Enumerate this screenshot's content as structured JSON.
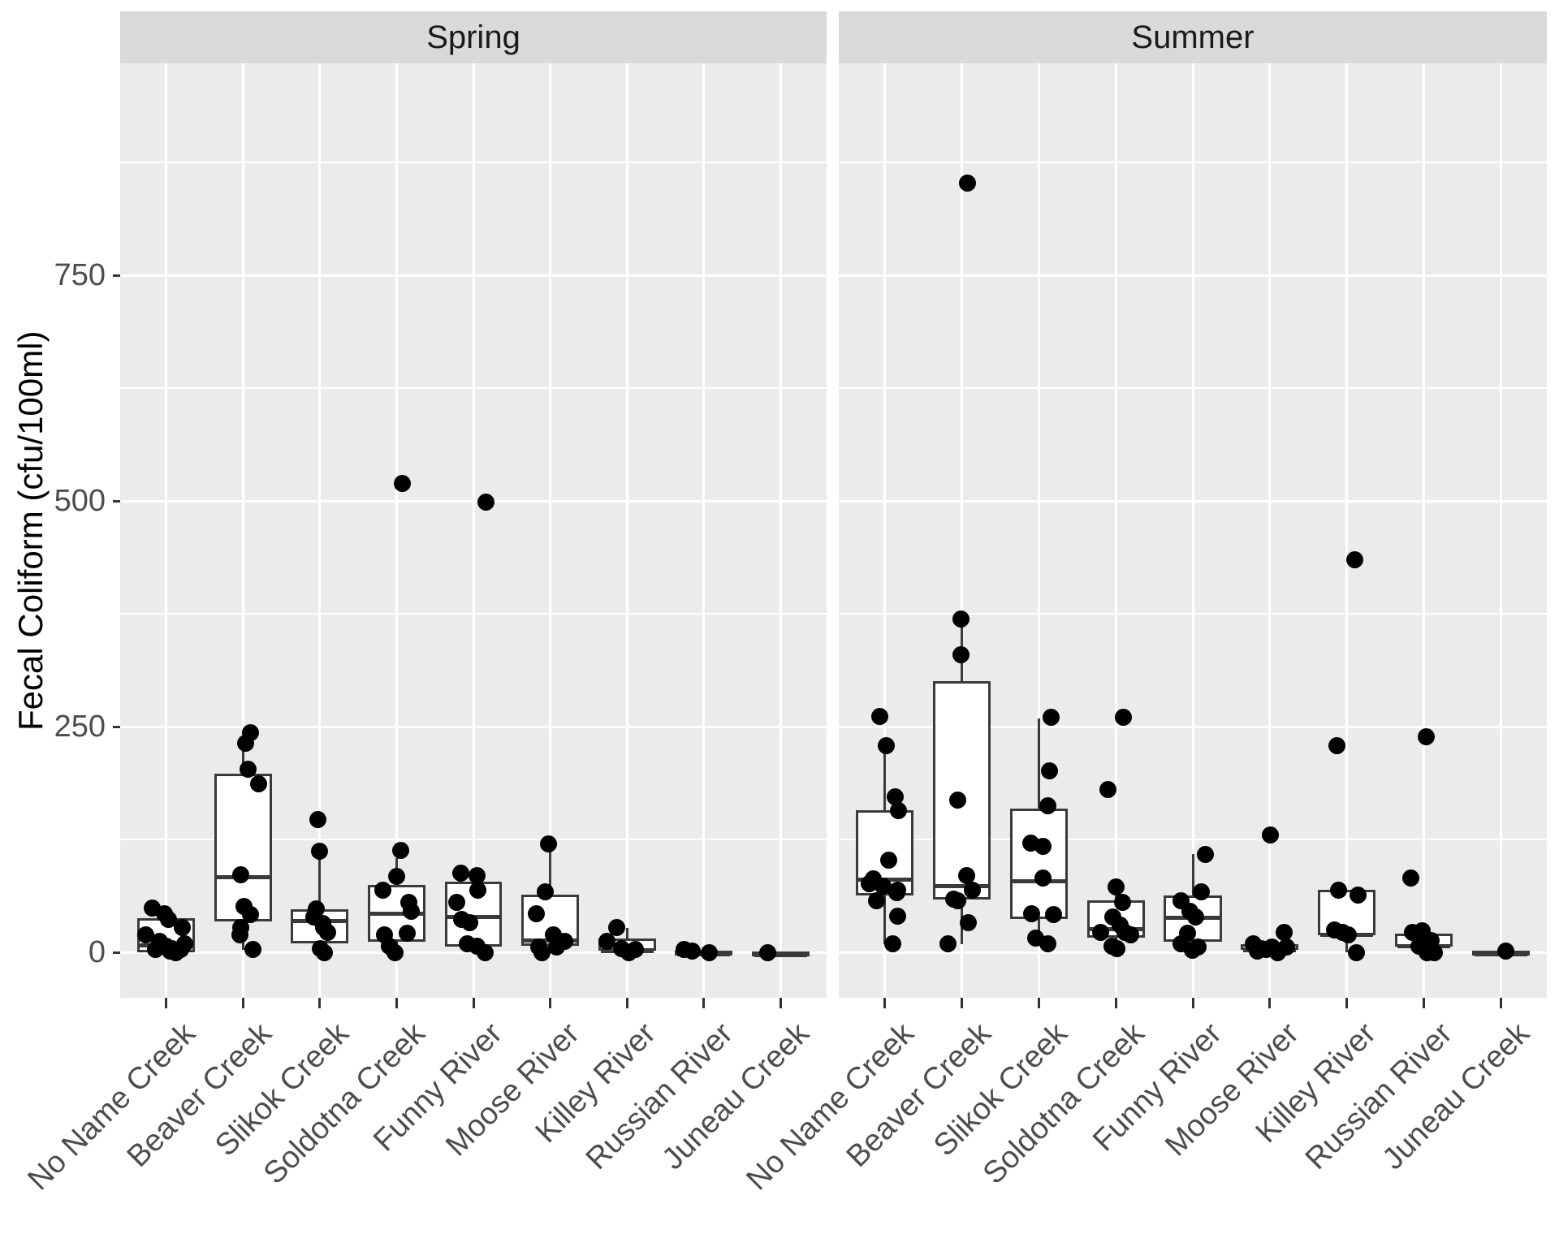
{
  "chart_data": {
    "type": "boxplot",
    "title": "",
    "legend": "none",
    "grid": true,
    "points_format": "[x_jitter_px, value_cfu_per_100ml]",
    "x_categories": [
      "No Name Creek",
      "Beaver Creek",
      "Slikok Creek",
      "Soldotna Creek",
      "Funny River",
      "Moose River",
      "Killey River",
      "Russian River",
      "Juneau Creek"
    ],
    "y_axis": {
      "label": "Fecal Coliform (cfu/100ml)",
      "major_ticks": [
        0,
        250,
        500,
        750
      ],
      "minor_ticks": [
        125,
        375,
        625,
        875
      ],
      "ylim": [
        -50,
        985
      ]
    },
    "colors": {
      "panel_bg": "#EBEBEB",
      "strip_bg": "#D9D9D9",
      "strip_text": "#1A1A1A",
      "gridline": "#FFFFFF",
      "box_fill": "#FFFFFF",
      "box_border": "#3A3A3A",
      "point": "#000000",
      "tick_text": "#4D4D4D",
      "tick_mark": "#333333",
      "axis_title": "#000000"
    },
    "facets": [
      {
        "label": "Spring",
        "groups": [
          {
            "name": "No Name Creek",
            "box": {
              "q1": 0,
              "median": 10,
              "q3": 38,
              "whisker_low": 0,
              "whisker_high": 49
            },
            "points": [
              [
                -25,
                19
              ],
              [
                -17,
                49
              ],
              [
                -2,
                43
              ],
              [
                3,
                36
              ],
              [
                20,
                27
              ],
              [
                -8,
                12
              ],
              [
                0,
                7
              ],
              [
                7,
                4
              ],
              [
                12,
                0
              ],
              [
                18,
                3
              ],
              [
                23,
                9
              ],
              [
                -13,
                3
              ],
              [
                5,
                1
              ]
            ]
          },
          {
            "name": "Beaver Creek",
            "box": {
              "q1": 34,
              "median": 86,
              "q3": 198,
              "whisker_low": 3,
              "whisker_high": 223
            },
            "points": [
              [
                9,
                243
              ],
              [
                3,
                232
              ],
              [
                6,
                203
              ],
              [
                19,
                187
              ],
              [
                -3,
                86
              ],
              [
                1,
                51
              ],
              [
                9,
                42
              ],
              [
                -3,
                27
              ],
              [
                -4,
                19
              ],
              [
                12,
                3
              ]
            ]
          },
          {
            "name": "Slikok Creek",
            "box": {
              "q1": 10,
              "median": 37,
              "q3": 48,
              "whisker_low": 0,
              "whisker_high": 112
            },
            "points": [
              [
                -2,
                147
              ],
              [
                0,
                112
              ],
              [
                -4,
                48
              ],
              [
                -7,
                39
              ],
              [
                4,
                32
              ],
              [
                5,
                27
              ],
              [
                10,
                22
              ],
              [
                1,
                4
              ],
              [
                6,
                0
              ]
            ]
          },
          {
            "name": "Soldotna Creek",
            "box": {
              "q1": 12,
              "median": 45,
              "q3": 75,
              "whisker_low": 0,
              "whisker_high": 104
            },
            "points": [
              [
                7,
                519
              ],
              [
                5,
                113
              ],
              [
                0,
                84
              ],
              [
                -17,
                69
              ],
              [
                15,
                55
              ],
              [
                18,
                45
              ],
              [
                13,
                21
              ],
              [
                -15,
                19
              ],
              [
                -9,
                7
              ],
              [
                -2,
                0
              ]
            ]
          },
          {
            "name": "Funny River",
            "box": {
              "q1": 6,
              "median": 42,
              "q3": 78,
              "whisker_low": 0,
              "whisker_high": 88
            },
            "points": [
              [
                15,
                499
              ],
              [
                -16,
                88
              ],
              [
                4,
                85
              ],
              [
                5,
                69
              ],
              [
                -21,
                55
              ],
              [
                -15,
                36
              ],
              [
                -5,
                33
              ],
              [
                -8,
                9
              ],
              [
                4,
                7
              ],
              [
                14,
                0
              ]
            ]
          },
          {
            "name": "Moose River",
            "box": {
              "q1": 7,
              "median": 16,
              "q3": 64,
              "whisker_low": 0,
              "whisker_high": 120
            },
            "points": [
              [
                -2,
                120
              ],
              [
                -6,
                67
              ],
              [
                -17,
                43
              ],
              [
                4,
                19
              ],
              [
                18,
                12
              ],
              [
                -14,
                6
              ],
              [
                8,
                6
              ],
              [
                -10,
                0
              ]
            ]
          },
          {
            "name": "Killey River",
            "box": {
              "q1": 2,
              "median": 4,
              "q3": 15,
              "whisker_low": 0,
              "whisker_high": 27
            },
            "points": [
              [
                -13,
                27
              ],
              [
                -25,
                12
              ],
              [
                -7,
                4
              ],
              [
                10,
                3
              ],
              [
                2,
                0
              ]
            ]
          },
          {
            "name": "Russian River",
            "box": {
              "q1": 0,
              "median": 1,
              "q3": 2,
              "whisker_low": 0,
              "whisker_high": 3
            },
            "points": [
              [
                -24,
                3
              ],
              [
                -14,
                1
              ],
              [
                7,
                0
              ]
            ]
          },
          {
            "name": "Juneau Creek",
            "box": {
              "q1": 0,
              "median": 0.5,
              "q3": 1,
              "whisker_low": 0,
              "whisker_high": 1
            },
            "points": [
              [
                -16,
                0
              ]
            ]
          }
        ]
      },
      {
        "label": "Summer",
        "groups": [
          {
            "name": "No Name Creek",
            "box": {
              "q1": 63,
              "median": 83,
              "q3": 157,
              "whisker_low": 9,
              "whisker_high": 226
            },
            "points": [
              [
                -6,
                261
              ],
              [
                2,
                229
              ],
              [
                13,
                172
              ],
              [
                17,
                157
              ],
              [
                5,
                102
              ],
              [
                -14,
                81
              ],
              [
                -19,
                76
              ],
              [
                16,
                69
              ],
              [
                15,
                66
              ],
              [
                -10,
                57
              ],
              [
                -2,
                73
              ],
              [
                16,
                40
              ],
              [
                10,
                9
              ]
            ]
          },
          {
            "name": "Beaver Creek",
            "box": {
              "q1": 58,
              "median": 76,
              "q3": 300,
              "whisker_low": 9,
              "whisker_high": 369
            },
            "points": [
              [
                7,
                852
              ],
              [
                -1,
                369
              ],
              [
                -1,
                330
              ],
              [
                -5,
                169
              ],
              [
                6,
                85
              ],
              [
                13,
                69
              ],
              [
                -5,
                57
              ],
              [
                -10,
                59
              ],
              [
                8,
                33
              ],
              [
                -17,
                9
              ]
            ]
          },
          {
            "name": "Slikok Creek",
            "box": {
              "q1": 37,
              "median": 81,
              "q3": 159,
              "whisker_low": 9,
              "whisker_high": 259
            },
            "points": [
              [
                15,
                260
              ],
              [
                13,
                201
              ],
              [
                11,
                162
              ],
              [
                -10,
                121
              ],
              [
                5,
                117
              ],
              [
                5,
                82
              ],
              [
                -9,
                43
              ],
              [
                18,
                42
              ],
              [
                -4,
                16
              ],
              [
                11,
                9
              ]
            ]
          },
          {
            "name": "Soldotna Creek",
            "box": {
              "q1": 16,
              "median": 28,
              "q3": 58,
              "whisker_low": 0,
              "whisker_high": 72
            },
            "points": [
              [
                9,
                260
              ],
              [
                -10,
                180
              ],
              [
                0,
                72
              ],
              [
                8,
                55
              ],
              [
                -4,
                39
              ],
              [
                5,
                30
              ],
              [
                -19,
                22
              ],
              [
                11,
                22
              ],
              [
                18,
                19
              ],
              [
                -5,
                7
              ],
              [
                1,
                4
              ]
            ]
          },
          {
            "name": "Funny River",
            "box": {
              "q1": 12,
              "median": 41,
              "q3": 63,
              "whisker_low": 0,
              "whisker_high": 109
            },
            "points": [
              [
                15,
                108
              ],
              [
                10,
                67
              ],
              [
                -15,
                57
              ],
              [
                -4,
                45
              ],
              [
                3,
                39
              ],
              [
                -7,
                21
              ],
              [
                -15,
                9
              ],
              [
                6,
                6
              ],
              [
                -1,
                2
              ]
            ]
          },
          {
            "name": "Moose River",
            "box": {
              "q1": 3,
              "median": 5,
              "q3": 9,
              "whisker_low": 0,
              "whisker_high": 9
            },
            "points": [
              [
                1,
                130
              ],
              [
                18,
                22
              ],
              [
                -20,
                9
              ],
              [
                -10,
                4
              ],
              [
                -4,
                3
              ],
              [
                3,
                6
              ],
              [
                10,
                0
              ],
              [
                21,
                6
              ],
              [
                -15,
                1
              ]
            ]
          },
          {
            "name": "Killey River",
            "box": {
              "q1": 19,
              "median": 22,
              "q3": 69,
              "whisker_low": 0,
              "whisker_high": 69
            },
            "points": [
              [
                10,
                435
              ],
              [
                -12,
                229
              ],
              [
                -10,
                69
              ],
              [
                14,
                63
              ],
              [
                -15,
                25
              ],
              [
                -5,
                22
              ],
              [
                2,
                19
              ],
              [
                12,
                0
              ]
            ]
          },
          {
            "name": "Russian River",
            "box": {
              "q1": 6,
              "median": 9,
              "q3": 21,
              "whisker_low": 0,
              "whisker_high": 24
            },
            "points": [
              [
                3,
                239
              ],
              [
                -16,
                82
              ],
              [
                -14,
                22
              ],
              [
                -2,
                24
              ],
              [
                9,
                13
              ],
              [
                -6,
                7
              ],
              [
                1,
                6
              ],
              [
                13,
                0
              ],
              [
                4,
                0
              ]
            ]
          },
          {
            "name": "Juneau Creek",
            "box": {
              "q1": 0,
              "median": 1,
              "q3": 2,
              "whisker_low": 0,
              "whisker_high": 2
            },
            "points": [
              [
                6,
                1
              ]
            ]
          }
        ]
      }
    ]
  }
}
